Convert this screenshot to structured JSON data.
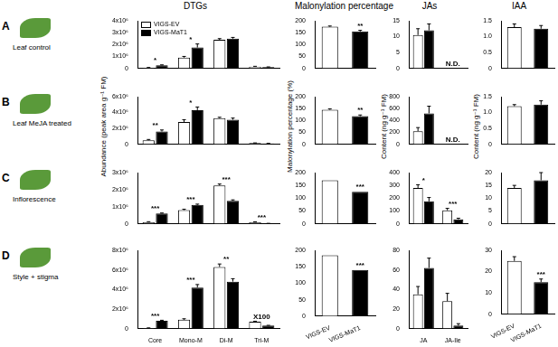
{
  "row_labels": [
    {
      "letter": "A",
      "label": "Leaf control"
    },
    {
      "letter": "B",
      "label": "Leaf MeJA treated"
    },
    {
      "letter": "C",
      "label": "Inflorescence"
    },
    {
      "letter": "D",
      "label": "Style + stigma"
    }
  ],
  "chart_data": [
    {
      "type": "bar",
      "title": "DTGs",
      "categories": [
        null,
        null,
        null,
        null
      ],
      "series": [
        {
          "name": "VIGS-EV",
          "color": "#ffffff",
          "values": [
            50000,
            900000,
            2400000,
            150000
          ],
          "errors": [
            20000,
            100000,
            100000,
            20000
          ]
        },
        {
          "name": "VIGS-MaT1",
          "color": "#000000",
          "values": [
            250000,
            1750000,
            2500000,
            100000
          ],
          "errors": [
            40000,
            300000,
            100000,
            20000
          ]
        }
      ],
      "bar_notes": [
        "*",
        "*",
        null,
        null
      ],
      "ylim": [
        0,
        4000000
      ],
      "yticks": [
        0,
        {
          "value": 1000000,
          "label": "1x10⁶"
        },
        {
          "value": 2000000,
          "label": "2x10⁶"
        },
        {
          "value": 3000000,
          "label": "3x10⁶"
        },
        {
          "value": 4000000,
          "label": "4x10⁶"
        }
      ],
      "grid": false,
      "legend": "top-left"
    },
    {
      "type": "bar",
      "title": "Malonylation percentage",
      "categories": [
        null,
        null
      ],
      "values": [
        175,
        155
      ],
      "errors": [
        3,
        5
      ],
      "colors": [
        "#ffffff",
        "#000000"
      ],
      "bar_notes": [
        null,
        "**"
      ],
      "ylim": [
        0,
        200
      ],
      "yticks": [
        0,
        50,
        100,
        150,
        200
      ],
      "grid": false
    },
    {
      "type": "bar",
      "title": "JAs",
      "categories": [
        null,
        null
      ],
      "series": [
        {
          "name": "VIGS-EV",
          "color": "#ffffff",
          "values": [
            10.5,
            null
          ],
          "errors": [
            2,
            null
          ]
        },
        {
          "name": "VIGS-MaT1",
          "color": "#000000",
          "values": [
            12,
            null
          ],
          "errors": [
            2,
            null
          ]
        }
      ],
      "bar_notes": [
        null,
        "N.D."
      ],
      "ylim": [
        0,
        15
      ],
      "yticks": [
        0,
        5,
        10,
        15
      ],
      "grid": false
    },
    {
      "type": "bar",
      "title": "IAA",
      "categories": [
        null,
        null
      ],
      "values": [
        1.3,
        1.25
      ],
      "errors": [
        0.1,
        0.1
      ],
      "colors": [
        "#ffffff",
        "#000000"
      ],
      "ylim": [
        0,
        1.5
      ],
      "yticks": [
        0,
        0.5,
        {
          "value": 1,
          "label": "1.0"
        },
        1.5
      ],
      "grid": false
    },
    {
      "type": "bar",
      "y_label": "Abundance (peak area g⁻¹ FM)",
      "categories": [
        null,
        null,
        null,
        null
      ],
      "series": [
        {
          "name": "VIGS-EV",
          "color": "#ffffff",
          "values": [
            500000,
            2800000,
            3300000,
            150000
          ],
          "errors": [
            100000,
            300000,
            100000,
            20000
          ]
        },
        {
          "name": "VIGS-MaT1",
          "color": "#000000",
          "values": [
            1600000,
            4300000,
            3100000,
            100000
          ],
          "errors": [
            200000,
            400000,
            200000,
            20000
          ]
        }
      ],
      "bar_notes": [
        "**",
        "*",
        null,
        null
      ],
      "ylim": [
        0,
        6000000
      ],
      "yticks": [
        0,
        {
          "value": 2000000,
          "label": "2x10⁶"
        },
        {
          "value": 4000000,
          "label": "4x10⁶"
        },
        {
          "value": 6000000,
          "label": "6x10⁶"
        }
      ],
      "grid": false
    },
    {
      "type": "bar",
      "y_label": "Malonylation percentage (%)",
      "categories": [
        null,
        null
      ],
      "values": [
        145,
        118
      ],
      "errors": [
        4,
        5
      ],
      "colors": [
        "#ffffff",
        "#000000"
      ],
      "bar_notes": [
        null,
        "**"
      ],
      "ylim": [
        0,
        200
      ],
      "yticks": [
        0,
        50,
        100,
        150,
        200
      ],
      "grid": false
    },
    {
      "type": "bar",
      "y_label": "Content (ng g⁻¹ FM)",
      "categories": [
        null,
        null
      ],
      "series": [
        {
          "name": "VIGS-EV",
          "color": "#ffffff",
          "values": [
            220,
            null
          ],
          "errors": [
            60,
            null
          ]
        },
        {
          "name": "VIGS-MaT1",
          "color": "#000000",
          "values": [
            520,
            null
          ],
          "errors": [
            120,
            null
          ]
        }
      ],
      "bar_notes": [
        null,
        "N.D."
      ],
      "ylim": [
        0,
        800
      ],
      "yticks": [
        0,
        200,
        400,
        600,
        800
      ],
      "grid": false
    },
    {
      "type": "bar",
      "y_label": "Content (ng g⁻¹ FM)",
      "categories": [
        null,
        null
      ],
      "values": [
        1.2,
        1.25
      ],
      "errors": [
        0.05,
        0.12
      ],
      "colors": [
        "#ffffff",
        "#000000"
      ],
      "ylim": [
        0,
        1.5
      ],
      "yticks": [
        0,
        0.5,
        {
          "value": 1,
          "label": "1.0"
        },
        1.5
      ],
      "grid": false
    },
    {
      "type": "bar",
      "categories": [
        null,
        null,
        null,
        null
      ],
      "series": [
        {
          "name": "VIGS-EV",
          "color": "#ffffff",
          "values": [
            100000,
            800000,
            2250000,
            100000
          ],
          "errors": [
            20000,
            50000,
            80000,
            10000
          ]
        },
        {
          "name": "VIGS-MaT1",
          "color": "#000000",
          "values": [
            600000,
            1100000,
            1350000,
            20000
          ],
          "errors": [
            30000,
            50000,
            50000,
            5000
          ]
        }
      ],
      "bar_notes": [
        "***",
        "***",
        "***",
        "***"
      ],
      "ylim": [
        0,
        3000000
      ],
      "yticks": [
        0,
        {
          "value": 1000000,
          "label": "1x10⁶"
        },
        {
          "value": 2000000,
          "label": "2x10⁶"
        },
        {
          "value": 3000000,
          "label": "3x10⁶"
        }
      ],
      "grid": false
    },
    {
      "type": "bar",
      "categories": [
        null,
        null
      ],
      "values": [
        170,
        125
      ],
      "colors": [
        "#ffffff",
        "#000000"
      ],
      "bar_notes": [
        null,
        "***"
      ],
      "ylim": [
        0,
        200
      ],
      "yticks": [
        0,
        50,
        100,
        150,
        200
      ],
      "grid": false
    },
    {
      "type": "bar",
      "categories": [
        null,
        null
      ],
      "series": [
        {
          "name": "VIGS-EV",
          "color": "#ffffff",
          "values": [
            280,
            105
          ],
          "errors": [
            25,
            15
          ]
        },
        {
          "name": "VIGS-MaT1",
          "color": "#000000",
          "values": [
            175,
            35
          ],
          "errors": [
            30,
            8
          ]
        }
      ],
      "bar_notes": [
        "*",
        "***"
      ],
      "ylim": [
        0,
        400
      ],
      "yticks": [
        0,
        100,
        200,
        300,
        400
      ],
      "grid": false
    },
    {
      "type": "bar",
      "categories": [
        null,
        null
      ],
      "values": [
        14,
        17
      ],
      "errors": [
        1,
        3
      ],
      "colors": [
        "#ffffff",
        "#000000"
      ],
      "ylim": [
        0,
        20
      ],
      "yticks": [
        0,
        5,
        10,
        15,
        20
      ],
      "grid": false
    },
    {
      "type": "bar",
      "categories": [
        "Core",
        "Mono-M",
        "Di-M",
        "Tri-M"
      ],
      "series": [
        {
          "name": "VIGS-EV",
          "color": "#ffffff",
          "values": [
            50000,
            900000,
            6300000,
            700000
          ],
          "errors": [
            20000,
            100000,
            300000,
            50000
          ]
        },
        {
          "name": "VIGS-MaT1",
          "color": "#000000",
          "values": [
            800000,
            4200000,
            4800000,
            300000
          ],
          "errors": [
            50000,
            300000,
            300000,
            30000
          ]
        }
      ],
      "bar_notes": [
        "***",
        "***",
        "**",
        "X100"
      ],
      "ylim": [
        0,
        8000000
      ],
      "yticks": [
        0,
        {
          "value": 2000000,
          "label": "2x10⁶"
        },
        {
          "value": 4000000,
          "label": "4x10⁶"
        },
        {
          "value": 6000000,
          "label": "6x10⁶"
        },
        {
          "value": 8000000,
          "label": "8x10⁶"
        }
      ],
      "grid": false
    },
    {
      "type": "bar",
      "categories": [
        "VIGS-EV",
        "VIGS-MaT1"
      ],
      "values": [
        185,
        140
      ],
      "colors": [
        "#ffffff",
        "#000000"
      ],
      "bar_notes": [
        null,
        "***"
      ],
      "ylim": [
        0,
        200
      ],
      "yticks": [
        0,
        50,
        100,
        150,
        200
      ],
      "grid": false
    },
    {
      "type": "bar",
      "categories": [
        "JA",
        "JA-Ile"
      ],
      "series": [
        {
          "name": "VIGS-EV",
          "color": "#ffffff",
          "values": [
            35,
            28
          ],
          "errors": [
            8,
            8
          ]
        },
        {
          "name": "VIGS-MaT1",
          "color": "#000000",
          "values": [
            62,
            3
          ],
          "errors": [
            10,
            2
          ]
        }
      ],
      "ylim": [
        0,
        80
      ],
      "yticks": [
        0,
        20,
        40,
        60,
        80
      ],
      "grid": false
    },
    {
      "type": "bar",
      "categories": [
        "VIGS-EV",
        "VIGS-MaT1"
      ],
      "values": [
        25,
        15
      ],
      "errors": [
        2,
        1.5
      ],
      "colors": [
        "#ffffff",
        "#000000"
      ],
      "bar_notes": [
        null,
        "***"
      ],
      "ylim": [
        0,
        30
      ],
      "yticks": [
        0,
        10,
        20,
        30
      ],
      "grid": false
    }
  ]
}
